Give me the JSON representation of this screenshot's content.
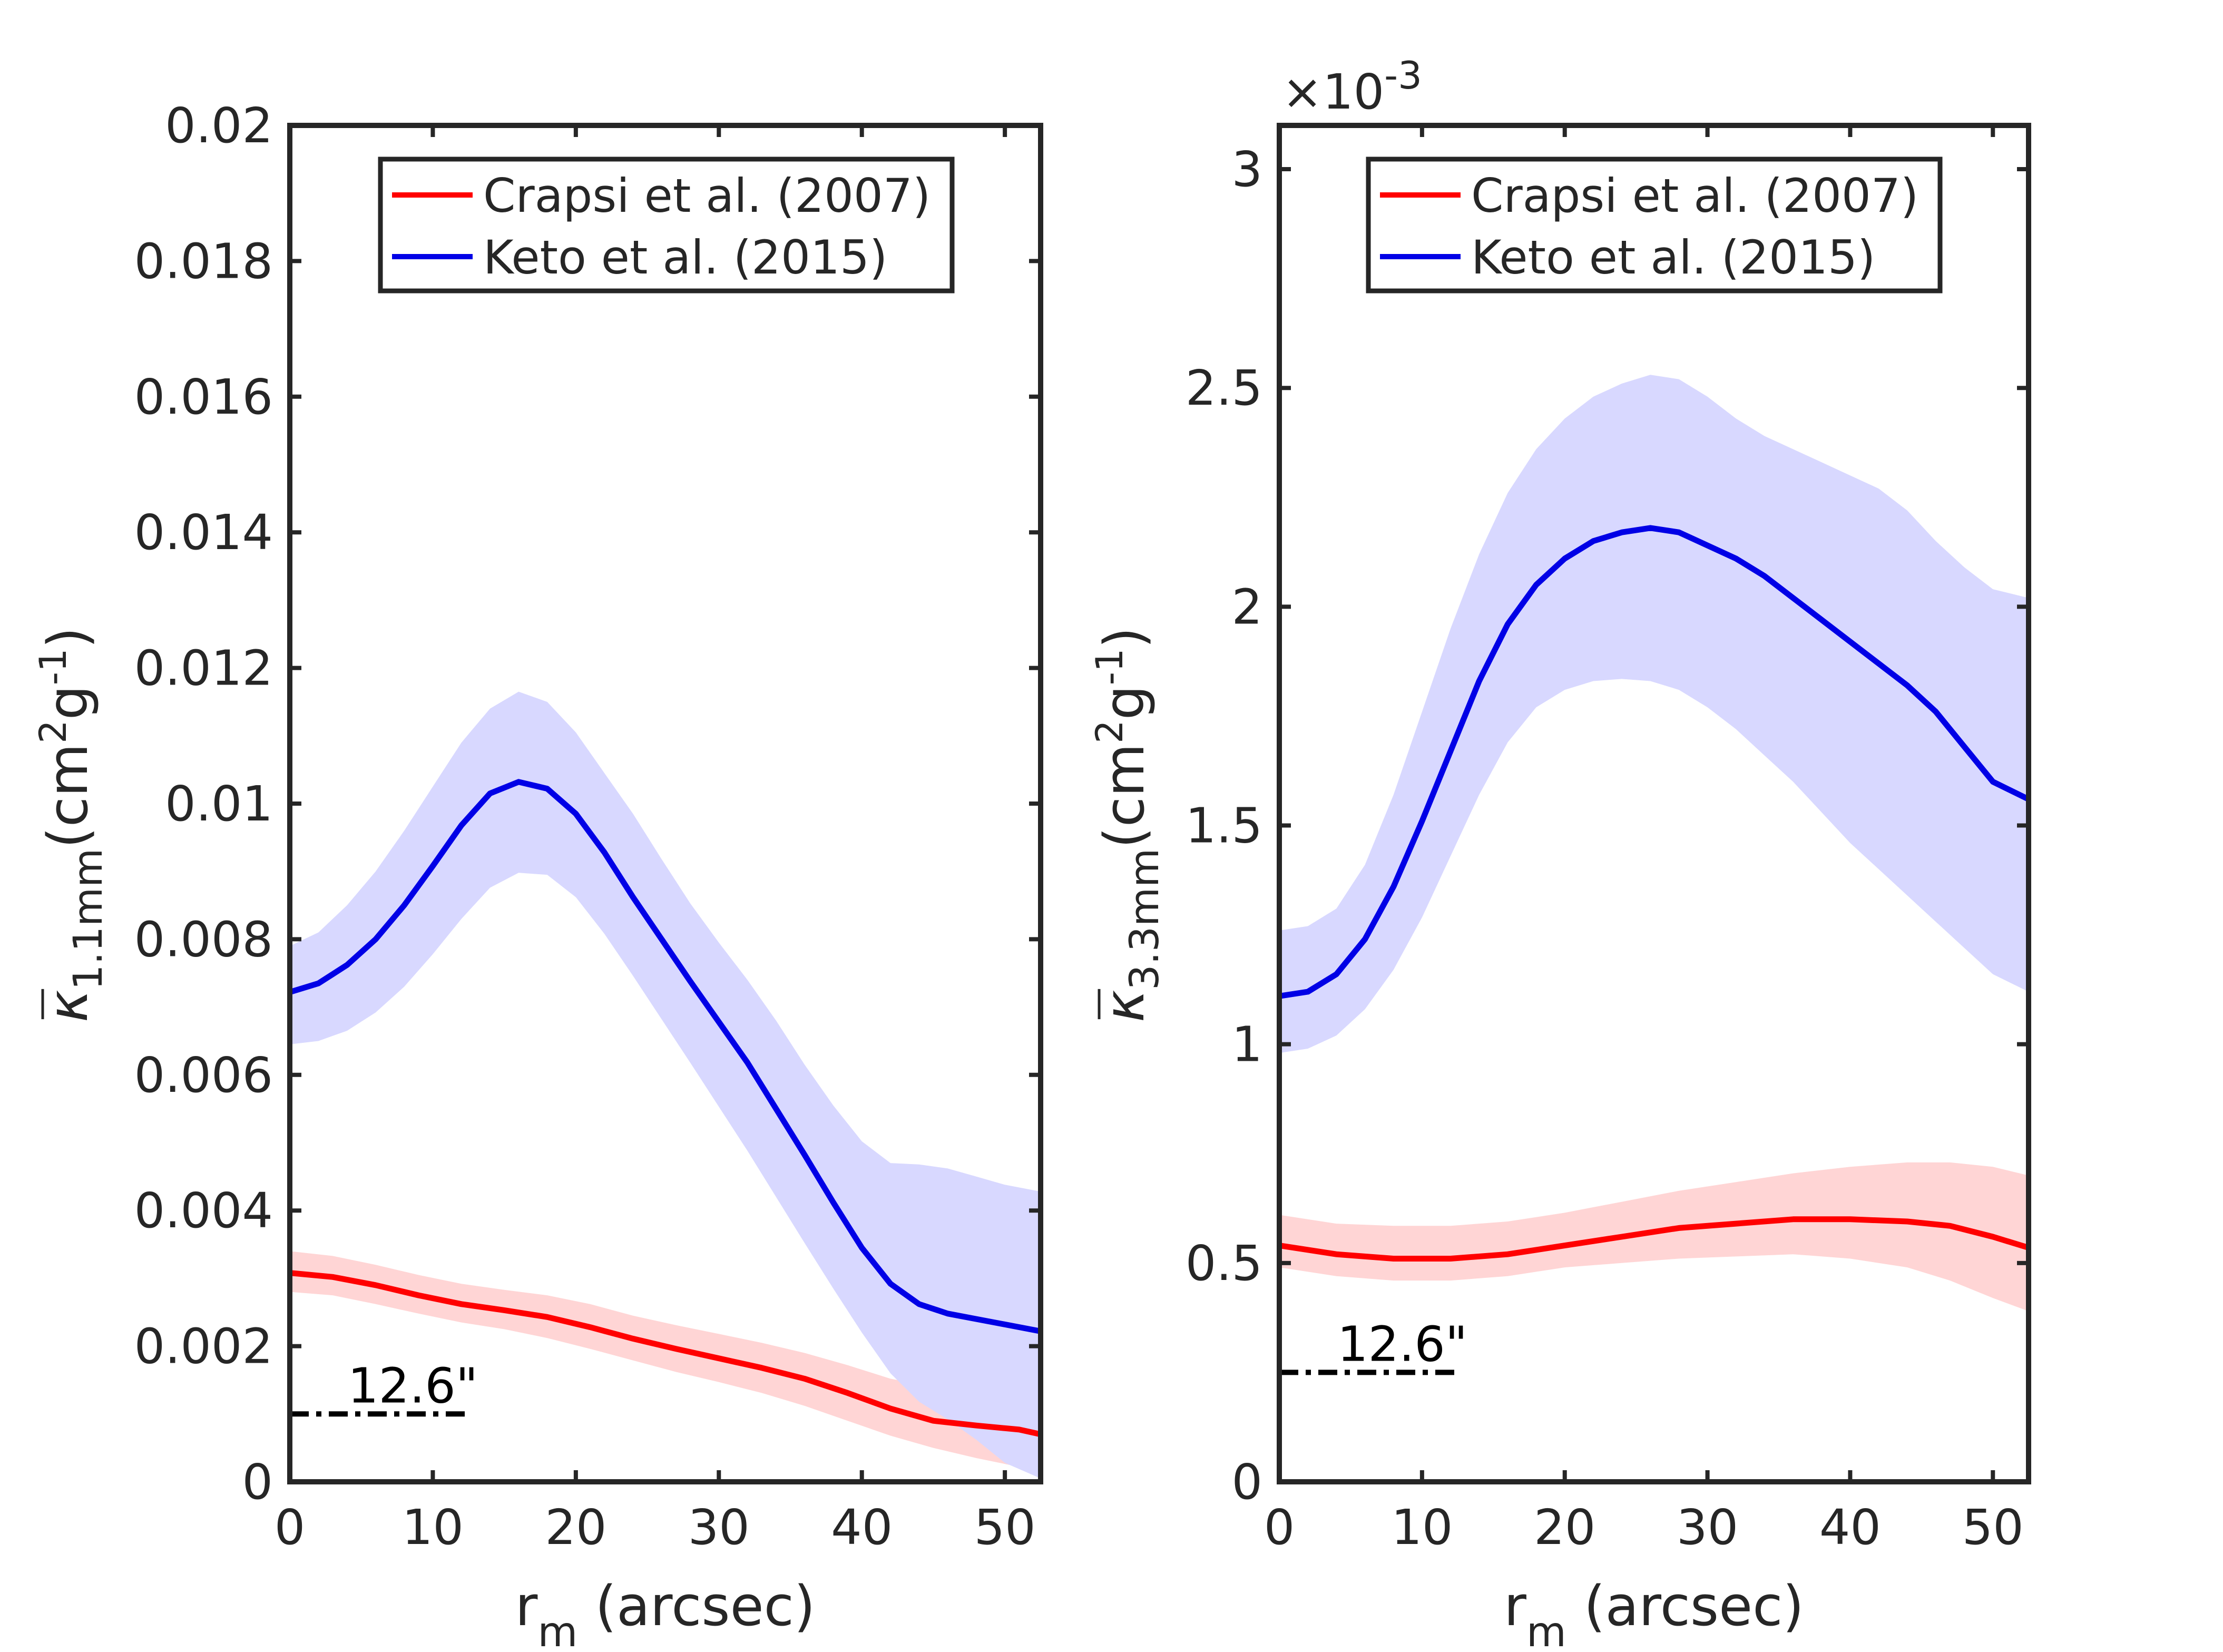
{
  "figure": {
    "panels": 2
  },
  "chart_data": [
    {
      "type": "line",
      "xlabel": "r",
      "xlabel_sub": "m",
      "xlabel_suffix": " (arcsec)",
      "ylabel_symbol": "κ",
      "ylabel_sub": "1.1mm",
      "ylabel_units": "(cm",
      "ylabel_units_exp": "2",
      "ylabel_units_mid": "g",
      "ylabel_units_exp2": "-1",
      "ylabel_units_end": ")",
      "xlim": [
        0,
        52.5
      ],
      "ylim": [
        0,
        0.02
      ],
      "xticks": [
        0,
        10,
        20,
        30,
        40,
        50
      ],
      "xtick_labels": [
        "0",
        "10",
        "20",
        "30",
        "40",
        "50"
      ],
      "yticks": [
        0,
        0.002,
        0.004,
        0.006,
        0.008,
        0.01,
        0.012,
        0.014,
        0.016,
        0.018,
        0.02
      ],
      "ytick_labels": [
        "0",
        "0.002",
        "0.004",
        "0.006",
        "0.008",
        "0.01",
        "0.012",
        "0.014",
        "0.016",
        "0.018",
        "0.02"
      ],
      "exponent_label": "",
      "legend_position": "top-center",
      "series": [
        {
          "name": "Crapsi et al. (2007)",
          "color": "#ff0000",
          "band_color": "#ffd5d5",
          "x": [
            0,
            3,
            6,
            9,
            12,
            15,
            18,
            21,
            24,
            27,
            30,
            33,
            36,
            39,
            42,
            45,
            48,
            51,
            52.5
          ],
          "values": [
            0.00308,
            0.00302,
            0.0029,
            0.00275,
            0.00262,
            0.00253,
            0.00243,
            0.00228,
            0.00211,
            0.00196,
            0.00182,
            0.00168,
            0.00152,
            0.00131,
            0.00108,
            0.0009,
            0.00083,
            0.00077,
            0.0007
          ],
          "lower": [
            0.0028,
            0.00275,
            0.00262,
            0.00248,
            0.00235,
            0.00225,
            0.00212,
            0.00196,
            0.00179,
            0.00162,
            0.00147,
            0.00131,
            0.00112,
            0.0009,
            0.00068,
            0.0005,
            0.00035,
            0.00022,
            0.00018
          ],
          "upper": [
            0.0034,
            0.00333,
            0.0032,
            0.00305,
            0.00292,
            0.00283,
            0.00275,
            0.00262,
            0.00245,
            0.00231,
            0.00218,
            0.00205,
            0.0019,
            0.00172,
            0.00152,
            0.0014,
            0.00138,
            0.00137,
            0.00137
          ]
        },
        {
          "name": "Keto et al. (2015)",
          "color": "#0000e6",
          "band_color": "#d8d8ff",
          "x": [
            0,
            2,
            4,
            6,
            8,
            10,
            12,
            14,
            16,
            18,
            20,
            22,
            24,
            26,
            28,
            30,
            32,
            34,
            36,
            38,
            40,
            42,
            44,
            46,
            48,
            50,
            52.5
          ],
          "values": [
            0.00722,
            0.00735,
            0.00762,
            0.008,
            0.0085,
            0.00908,
            0.00968,
            0.01015,
            0.01032,
            0.01022,
            0.00985,
            0.00928,
            0.00862,
            0.008,
            0.00738,
            0.00678,
            0.00618,
            0.0055,
            0.00482,
            0.00412,
            0.00345,
            0.00292,
            0.00262,
            0.00248,
            0.0024,
            0.00232,
            0.00222
          ],
          "lower": [
            0.00645,
            0.0065,
            0.00665,
            0.00692,
            0.0073,
            0.00778,
            0.0083,
            0.00876,
            0.00898,
            0.00895,
            0.00862,
            0.00808,
            0.00746,
            0.00682,
            0.00618,
            0.00553,
            0.00488,
            0.0042,
            0.00352,
            0.00285,
            0.0022,
            0.0016,
            0.00118,
            0.00092,
            0.00062,
            0.00028,
            5e-05
          ],
          "upper": [
            0.0079,
            0.0081,
            0.0085,
            0.009,
            0.0096,
            0.01025,
            0.0109,
            0.0114,
            0.01165,
            0.0115,
            0.01105,
            0.01045,
            0.00985,
            0.00918,
            0.00853,
            0.00795,
            0.0074,
            0.0068,
            0.00615,
            0.00555,
            0.00502,
            0.0047,
            0.00468,
            0.00462,
            0.0045,
            0.00438,
            0.00428
          ]
        }
      ],
      "annotation": {
        "text": "12.6\"",
        "y": 0.001,
        "x_start": 0,
        "x_end": 12.6
      }
    },
    {
      "type": "line",
      "xlabel": "r",
      "xlabel_sub": "m",
      "xlabel_suffix": " (arcsec)",
      "ylabel_symbol": "κ",
      "ylabel_sub": "3.3mm",
      "ylabel_units": "(cm",
      "ylabel_units_exp": "2",
      "ylabel_units_mid": "g",
      "ylabel_units_exp2": "-1",
      "ylabel_units_end": ")",
      "xlim": [
        0,
        52.5
      ],
      "ylim": [
        0,
        3.1
      ],
      "xticks": [
        0,
        10,
        20,
        30,
        40,
        50
      ],
      "xtick_labels": [
        "0",
        "10",
        "20",
        "30",
        "40",
        "50"
      ],
      "yticks": [
        0,
        0.5,
        1,
        1.5,
        2,
        2.5,
        3
      ],
      "ytick_labels": [
        "0",
        "0.5",
        "1",
        "1.5",
        "2",
        "2.5",
        "3"
      ],
      "exponent_label": "×10",
      "exponent_power": "-3",
      "legend_position": "top-center",
      "series": [
        {
          "name": "Crapsi et al. (2007)",
          "color": "#ff0000",
          "band_color": "#ffd5d5",
          "x": [
            0,
            4,
            8,
            12,
            16,
            20,
            24,
            28,
            32,
            36,
            40,
            44,
            47,
            50,
            52.5
          ],
          "values": [
            0.54,
            0.52,
            0.51,
            0.51,
            0.52,
            0.54,
            0.56,
            0.58,
            0.59,
            0.6,
            0.6,
            0.595,
            0.585,
            0.56,
            0.535
          ],
          "lower": [
            0.49,
            0.47,
            0.46,
            0.46,
            0.47,
            0.49,
            0.5,
            0.51,
            0.515,
            0.52,
            0.51,
            0.49,
            0.46,
            0.42,
            0.39
          ],
          "upper": [
            0.61,
            0.59,
            0.585,
            0.585,
            0.595,
            0.615,
            0.64,
            0.665,
            0.685,
            0.705,
            0.72,
            0.73,
            0.73,
            0.72,
            0.7
          ]
        },
        {
          "name": "Keto et al. (2015)",
          "color": "#0000e6",
          "band_color": "#d8d8ff",
          "x": [
            0,
            2,
            4,
            6,
            8,
            10,
            12,
            14,
            16,
            18,
            20,
            22,
            24,
            26,
            28,
            30,
            32,
            34,
            36,
            38,
            40,
            42,
            44,
            46,
            48,
            50,
            52.5
          ],
          "values": [
            1.11,
            1.12,
            1.16,
            1.24,
            1.36,
            1.51,
            1.67,
            1.83,
            1.96,
            2.05,
            2.11,
            2.15,
            2.17,
            2.18,
            2.17,
            2.14,
            2.11,
            2.07,
            2.02,
            1.97,
            1.92,
            1.87,
            1.82,
            1.76,
            1.68,
            1.6,
            1.56
          ],
          "lower": [
            0.98,
            0.99,
            1.02,
            1.08,
            1.17,
            1.29,
            1.43,
            1.57,
            1.69,
            1.77,
            1.81,
            1.83,
            1.835,
            1.83,
            1.81,
            1.77,
            1.72,
            1.66,
            1.6,
            1.53,
            1.46,
            1.4,
            1.34,
            1.28,
            1.22,
            1.16,
            1.12
          ],
          "upper": [
            1.26,
            1.27,
            1.31,
            1.41,
            1.57,
            1.76,
            1.95,
            2.12,
            2.26,
            2.36,
            2.43,
            2.48,
            2.51,
            2.53,
            2.52,
            2.48,
            2.43,
            2.39,
            2.36,
            2.33,
            2.3,
            2.27,
            2.22,
            2.15,
            2.09,
            2.04,
            2.02
          ]
        }
      ],
      "annotation": {
        "text": "12.6\"",
        "y": 0.25,
        "x_start": 0,
        "x_end": 12.6
      }
    }
  ]
}
